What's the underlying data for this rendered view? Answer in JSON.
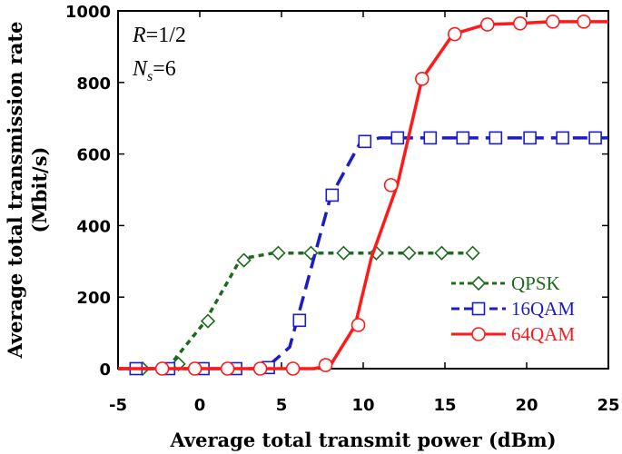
{
  "chart_data": {
    "type": "line",
    "xlabel": "Average total transmit power (dBm)",
    "ylabel_line1": "Average total transmission rate",
    "ylabel_line2": "(Mbit/s)",
    "xlim": [
      -5,
      25
    ],
    "ylim": [
      0,
      1000
    ],
    "xticks": [
      -5,
      0,
      5,
      10,
      15,
      20,
      25
    ],
    "yticks": [
      0,
      200,
      400,
      600,
      800,
      1000
    ],
    "annotations": {
      "rate_var": "R",
      "rate_value": "=1/2",
      "streams_var": "N",
      "streams_sub": "s",
      "streams_value": "=6"
    },
    "legend_position": "bottom-right",
    "series": [
      {
        "name": "QPSK",
        "color": "#1e6b1e",
        "dash": "6,5",
        "marker": "diamond",
        "line": [
          [
            -5,
            0
          ],
          [
            -2,
            0
          ],
          [
            0.3,
            130
          ],
          [
            2.5,
            307
          ],
          [
            4.5,
            323
          ],
          [
            16.5,
            323
          ]
        ],
        "markers": [
          [
            -3.5,
            0
          ],
          [
            -1.3,
            13
          ],
          [
            0.5,
            133
          ],
          [
            2.7,
            303
          ],
          [
            4.8,
            323
          ],
          [
            6.8,
            323
          ],
          [
            8.8,
            323
          ],
          [
            10.8,
            323
          ],
          [
            12.8,
            323
          ],
          [
            14.8,
            323
          ],
          [
            16.7,
            323
          ]
        ]
      },
      {
        "name": "16QAM",
        "color": "#1c1cc8",
        "dash": "16,8",
        "marker": "square",
        "line": [
          [
            -5,
            0
          ],
          [
            4,
            0
          ],
          [
            5.5,
            60
          ],
          [
            8,
            480
          ],
          [
            9.8,
            630
          ],
          [
            11,
            645
          ],
          [
            25,
            645
          ]
        ],
        "markers": [
          [
            -3.9,
            0
          ],
          [
            -1.9,
            0
          ],
          [
            0.2,
            0
          ],
          [
            2.2,
            0
          ],
          [
            4.2,
            3
          ],
          [
            6.1,
            135
          ],
          [
            8.1,
            485
          ],
          [
            10.1,
            635
          ],
          [
            12.1,
            645
          ],
          [
            14.1,
            645
          ],
          [
            16.1,
            645
          ],
          [
            18.1,
            645
          ],
          [
            20.2,
            645
          ],
          [
            22.2,
            645
          ],
          [
            24.2,
            645
          ]
        ]
      },
      {
        "name": "64QAM",
        "color": "#ff1a1a",
        "dash": "",
        "marker": "circle",
        "line": [
          [
            -5,
            0
          ],
          [
            7,
            0
          ],
          [
            8,
            10
          ],
          [
            9.5,
            120
          ],
          [
            10.5,
            310
          ],
          [
            12.1,
            515
          ],
          [
            13.6,
            810
          ],
          [
            15.5,
            935
          ],
          [
            17.5,
            962
          ],
          [
            19.5,
            965
          ],
          [
            21.5,
            970
          ],
          [
            25,
            970
          ]
        ],
        "markers": [
          [
            -2.3,
            0
          ],
          [
            -0.3,
            0
          ],
          [
            1.7,
            0
          ],
          [
            3.7,
            0
          ],
          [
            5.7,
            0
          ],
          [
            7.7,
            10
          ],
          [
            9.7,
            122
          ],
          [
            11.7,
            513
          ],
          [
            13.6,
            810
          ],
          [
            15.6,
            935
          ],
          [
            17.6,
            962
          ],
          [
            19.6,
            965
          ],
          [
            21.6,
            970
          ],
          [
            23.5,
            970
          ]
        ]
      }
    ]
  }
}
